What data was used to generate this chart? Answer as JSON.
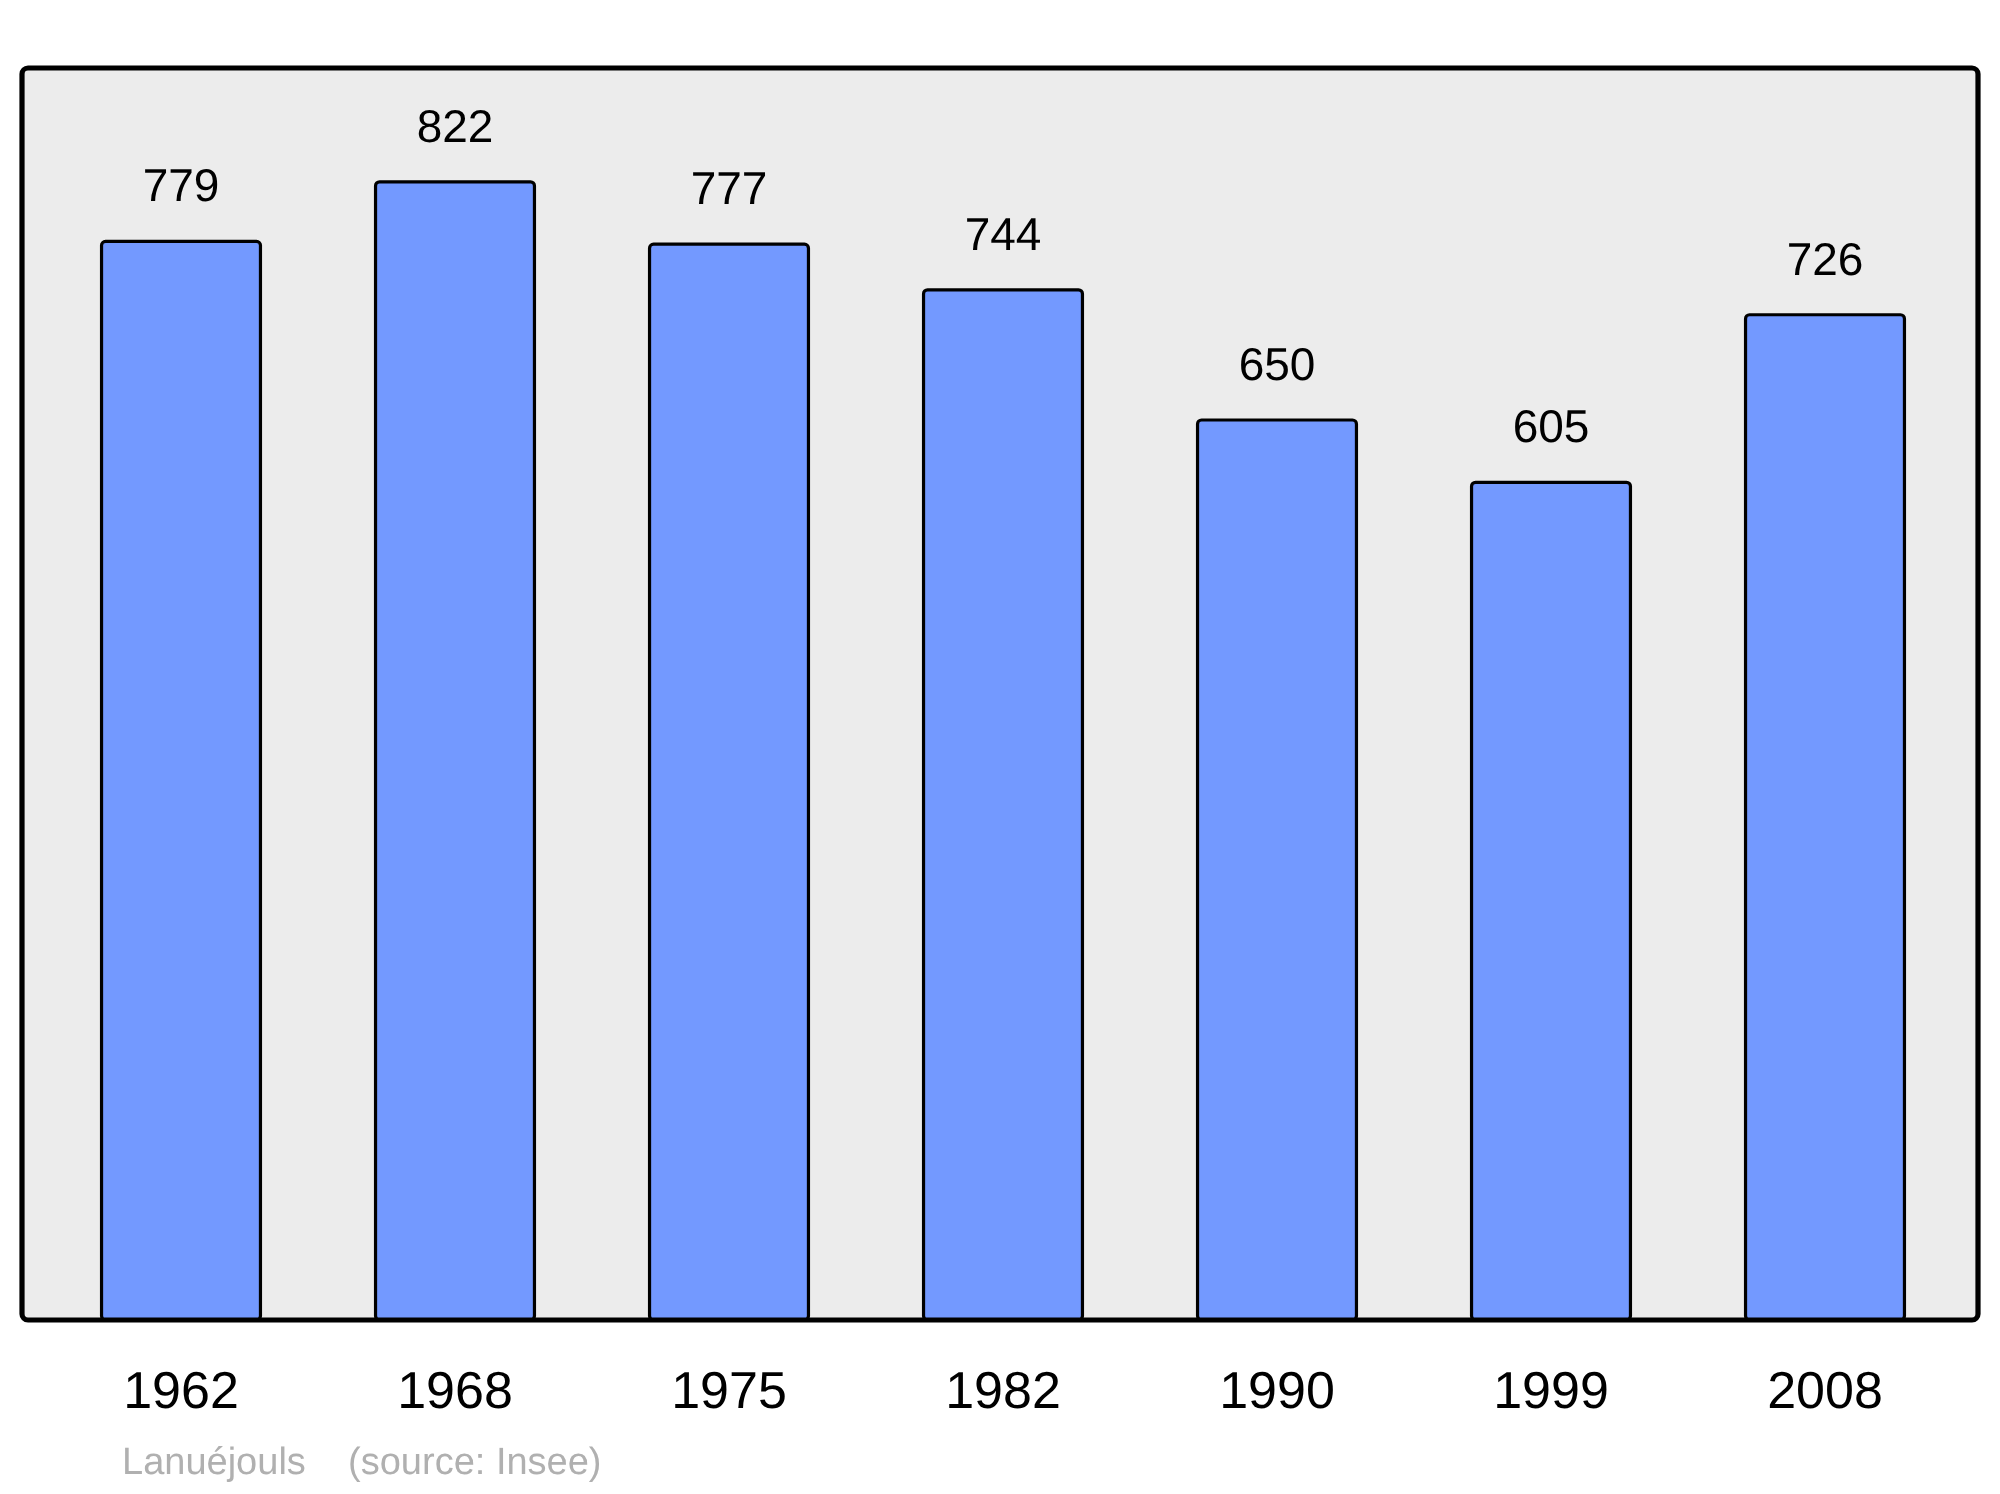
{
  "chart_data": {
    "type": "bar",
    "categories": [
      "1962",
      "1968",
      "1975",
      "1982",
      "1990",
      "1999",
      "2008"
    ],
    "values": [
      779,
      822,
      777,
      744,
      650,
      605,
      726
    ],
    "color": "#7399ff",
    "data_labels": true,
    "annotations": [
      "Lanuéjouls    (source: Insee)"
    ]
  }
}
